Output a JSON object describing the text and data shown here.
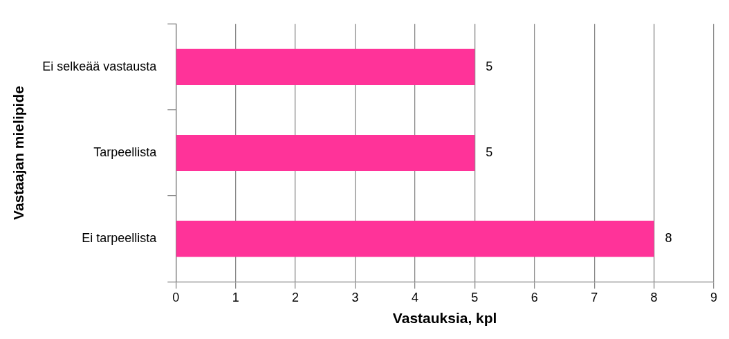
{
  "chart_data": {
    "type": "bar",
    "orientation": "horizontal",
    "xlabel": "Vastauksia, kpl",
    "ylabel": "Vastaajan mielipide",
    "categories": [
      "Ei selkeää vastausta",
      "Tarpeellista",
      "Ei tarpeellista"
    ],
    "values": [
      5,
      5,
      8
    ],
    "color": "#ff3399",
    "xlim": [
      0,
      9
    ],
    "xticks": [
      0,
      1,
      2,
      3,
      4,
      5,
      6,
      7,
      8,
      9
    ],
    "grid": "x",
    "data_labels": true
  }
}
